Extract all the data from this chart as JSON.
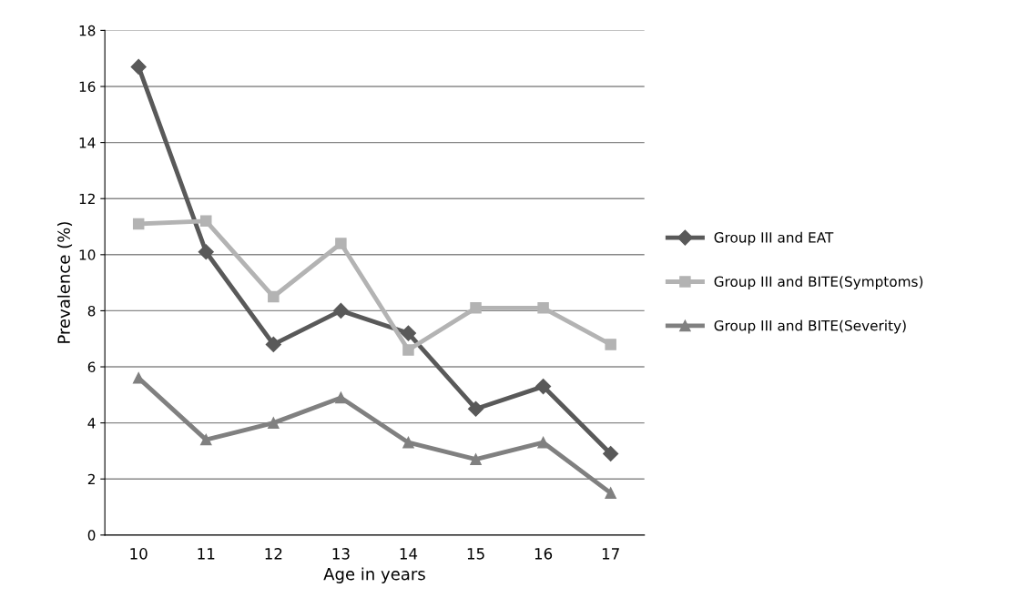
{
  "chart_data": {
    "type": "line",
    "xlabel": "Age in years",
    "ylabel": "Prevalence (%)",
    "categories": [
      "10",
      "11",
      "12",
      "13",
      "14",
      "15",
      "16",
      "17"
    ],
    "series": [
      {
        "name": "Group III and EAT",
        "color": "#595959",
        "marker": "diamond",
        "values": [
          16.7,
          10.1,
          6.8,
          8.0,
          7.2,
          4.5,
          5.3,
          2.9
        ]
      },
      {
        "name": "Group III and BITE(Symptoms)",
        "color": "#b3b3b3",
        "marker": "square",
        "values": [
          11.1,
          11.2,
          8.5,
          10.4,
          6.6,
          8.1,
          8.1,
          6.8
        ]
      },
      {
        "name": "Group III and BITE(Severity)",
        "color": "#808080",
        "marker": "triangle",
        "values": [
          5.6,
          3.4,
          4.0,
          4.9,
          3.3,
          2.7,
          3.3,
          1.5
        ]
      }
    ],
    "ylim": [
      0,
      18
    ],
    "yticks": [
      0,
      2,
      4,
      6,
      8,
      10,
      12,
      14,
      16,
      18
    ],
    "grid": "y",
    "legend": "right",
    "line_style": "solid"
  }
}
